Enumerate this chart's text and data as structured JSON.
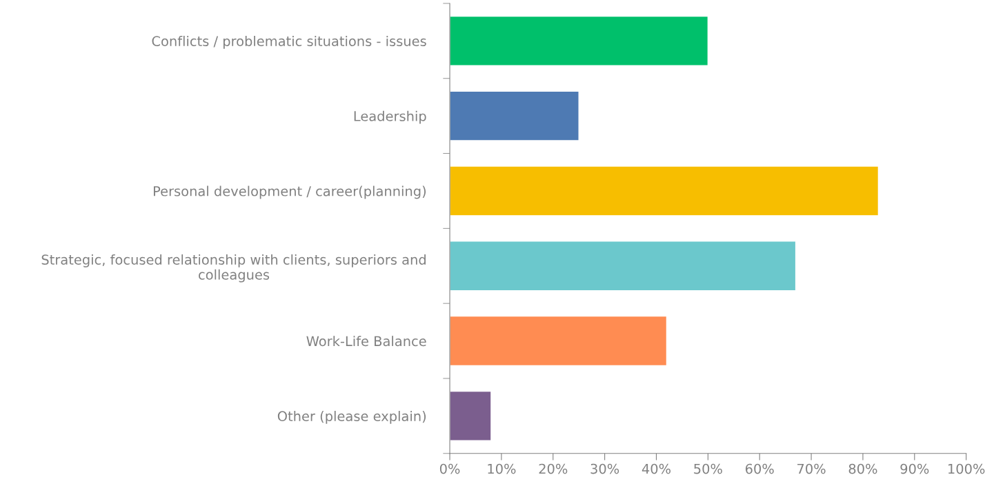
{
  "chart_data": {
    "type": "bar",
    "orientation": "horizontal",
    "categories": [
      "Conflicts / problematic situations - issues",
      "Leadership",
      "Personal development / career(planning)",
      "Strategic, focused relationship with clients, superiors and\ncolleagues",
      "Work-Life Balance",
      "Other (please explain)"
    ],
    "values": [
      50,
      25,
      83,
      67,
      42,
      8
    ],
    "colors": [
      "#00c06b",
      "#4e7ab3",
      "#f7be00",
      "#6bc8cc",
      "#ff8c52",
      "#7b5e8e"
    ],
    "xlim": [
      0,
      100
    ],
    "xticks": [
      {
        "value": 0,
        "label": "0%"
      },
      {
        "value": 10,
        "label": "10%"
      },
      {
        "value": 20,
        "label": "20%"
      },
      {
        "value": 30,
        "label": "30%"
      },
      {
        "value": 40,
        "label": "40%"
      },
      {
        "value": 50,
        "label": "50%"
      },
      {
        "value": 60,
        "label": "60%"
      },
      {
        "value": 70,
        "label": "70%"
      },
      {
        "value": 80,
        "label": "80%"
      },
      {
        "value": 90,
        "label": "90%"
      },
      {
        "value": 100,
        "label": "100%"
      }
    ],
    "grid": false,
    "legend": false
  }
}
